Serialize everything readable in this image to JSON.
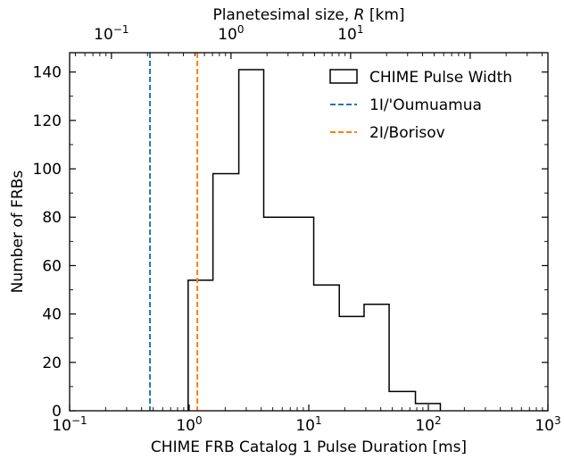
{
  "chart_data": {
    "type": "histogram",
    "xlabel": "CHIME FRB Catalog 1 Pulse Duration [ms]",
    "ylabel": "Number of FRBs",
    "top_xlabel_prefix": "Planetesimal size, ",
    "top_xlabel_var": "R",
    "top_xlabel_suffix": " [km]",
    "x_scale": "log",
    "xlim": [
      0.1,
      1000
    ],
    "ylim": [
      0,
      148
    ],
    "top_axis_scale": "log",
    "top_axis_range_km": [
      0.0447,
      447
    ],
    "x_ticks": [
      {
        "value": 0.1,
        "base": "10",
        "exp": "−1"
      },
      {
        "value": 1,
        "base": "10",
        "exp": "0"
      },
      {
        "value": 10,
        "base": "10",
        "exp": "1"
      },
      {
        "value": 100,
        "base": "10",
        "exp": "2"
      },
      {
        "value": 1000,
        "base": "10",
        "exp": "3"
      }
    ],
    "top_ticks": [
      {
        "value": 0.1,
        "base": "10",
        "exp": "−1"
      },
      {
        "value": 1,
        "base": "10",
        "exp": "0"
      },
      {
        "value": 10,
        "base": "10",
        "exp": "1"
      }
    ],
    "y_ticks": [
      0,
      20,
      40,
      60,
      80,
      100,
      120,
      140
    ],
    "histogram": {
      "name": "CHIME Pulse Width",
      "bin_edges": [
        0.98,
        1.58,
        2.6,
        4.2,
        11.0,
        18.0,
        29.0,
        47.0,
        78.0,
        126.0
      ],
      "counts": [
        54,
        98,
        141,
        80,
        52,
        39,
        44,
        8,
        3
      ],
      "color": "#000000"
    },
    "vlines": [
      {
        "name": "1I/'Oumuamua",
        "x": 0.47,
        "color": "#1f77b4"
      },
      {
        "name": "2I/Borisov",
        "x": 1.17,
        "color": "#ff7f0e"
      }
    ],
    "legend_position": "upper-right",
    "grid": false
  }
}
